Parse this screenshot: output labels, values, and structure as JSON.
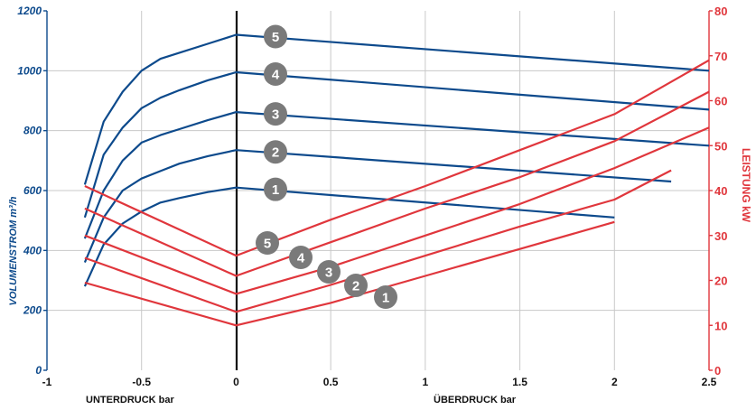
{
  "chart_data": {
    "type": "line",
    "xlabel_left": "UNTERDRUCK bar",
    "xlabel_right": "ÜBERDRUCK bar",
    "ylabel_left": "VOLUMENSTROM m³/h",
    "ylabel_right": "LEISTUNG kW",
    "xlim": [
      -1,
      2.5
    ],
    "ylim_left": [
      0,
      1200
    ],
    "ylim_right": [
      0,
      80
    ],
    "x_ticks": [
      "-1",
      "-0.5",
      "0",
      "0.5",
      "1",
      "1.5",
      "2",
      "2.5"
    ],
    "y_left_ticks": [
      "0",
      "200",
      "400",
      "600",
      "800",
      "1000",
      "1200"
    ],
    "y_right_ticks": [
      "0",
      "10",
      "20",
      "30",
      "40",
      "50",
      "60",
      "70",
      "80"
    ],
    "grid": true,
    "colors": {
      "volume": "#0d4a8c",
      "power": "#e0363c",
      "badge": "#7a7a7a"
    },
    "volume_series": [
      {
        "label": "1",
        "points": [
          [
            -0.8,
            280
          ],
          [
            -0.7,
            420
          ],
          [
            -0.6,
            490
          ],
          [
            -0.5,
            530
          ],
          [
            -0.4,
            560
          ],
          [
            -0.3,
            575
          ],
          [
            -0.15,
            595
          ],
          [
            0,
            610
          ],
          [
            2,
            510
          ]
        ]
      },
      {
        "label": "2",
        "points": [
          [
            -0.8,
            360
          ],
          [
            -0.7,
            510
          ],
          [
            -0.6,
            600
          ],
          [
            -0.5,
            640
          ],
          [
            -0.4,
            665
          ],
          [
            -0.3,
            690
          ],
          [
            -0.15,
            715
          ],
          [
            0,
            735
          ],
          [
            2.3,
            630
          ]
        ]
      },
      {
        "label": "3",
        "points": [
          [
            -0.8,
            440
          ],
          [
            -0.7,
            600
          ],
          [
            -0.6,
            700
          ],
          [
            -0.5,
            760
          ],
          [
            -0.4,
            785
          ],
          [
            -0.3,
            805
          ],
          [
            -0.15,
            835
          ],
          [
            0,
            862
          ],
          [
            2.5,
            750
          ]
        ]
      },
      {
        "label": "4",
        "points": [
          [
            -0.8,
            510
          ],
          [
            -0.7,
            720
          ],
          [
            -0.6,
            810
          ],
          [
            -0.5,
            875
          ],
          [
            -0.4,
            910
          ],
          [
            -0.3,
            935
          ],
          [
            -0.15,
            968
          ],
          [
            0,
            995
          ],
          [
            2.5,
            870
          ]
        ]
      },
      {
        "label": "5",
        "points": [
          [
            -0.8,
            620
          ],
          [
            -0.7,
            830
          ],
          [
            -0.6,
            930
          ],
          [
            -0.5,
            1000
          ],
          [
            -0.4,
            1040
          ],
          [
            -0.3,
            1060
          ],
          [
            -0.15,
            1090
          ],
          [
            0,
            1120
          ],
          [
            2.5,
            1000
          ]
        ]
      }
    ],
    "power_series": [
      {
        "label": "1",
        "points": [
          [
            -0.8,
            19.5
          ],
          [
            0,
            10
          ],
          [
            0.5,
            15
          ],
          [
            1,
            21
          ],
          [
            1.5,
            27
          ],
          [
            2,
            33
          ]
        ]
      },
      {
        "label": "2",
        "points": [
          [
            -0.8,
            25
          ],
          [
            0,
            13
          ],
          [
            0.5,
            19
          ],
          [
            1,
            25.5
          ],
          [
            1.5,
            32
          ],
          [
            2,
            38
          ],
          [
            2.3,
            44.5
          ]
        ]
      },
      {
        "label": "3",
        "points": [
          [
            -0.8,
            30
          ],
          [
            0,
            17
          ],
          [
            0.5,
            23
          ],
          [
            1,
            30
          ],
          [
            1.5,
            37
          ],
          [
            2,
            45
          ],
          [
            2.5,
            54
          ]
        ]
      },
      {
        "label": "4",
        "points": [
          [
            -0.8,
            36
          ],
          [
            0,
            21
          ],
          [
            0.5,
            28.5
          ],
          [
            1,
            36
          ],
          [
            1.5,
            43
          ],
          [
            2,
            51
          ],
          [
            2.5,
            62
          ]
        ]
      },
      {
        "label": "5",
        "points": [
          [
            -0.8,
            41
          ],
          [
            0,
            25.5
          ],
          [
            0.5,
            33.5
          ],
          [
            1,
            41
          ],
          [
            1.5,
            49
          ],
          [
            2,
            57
          ],
          [
            2.5,
            69
          ]
        ]
      }
    ]
  }
}
